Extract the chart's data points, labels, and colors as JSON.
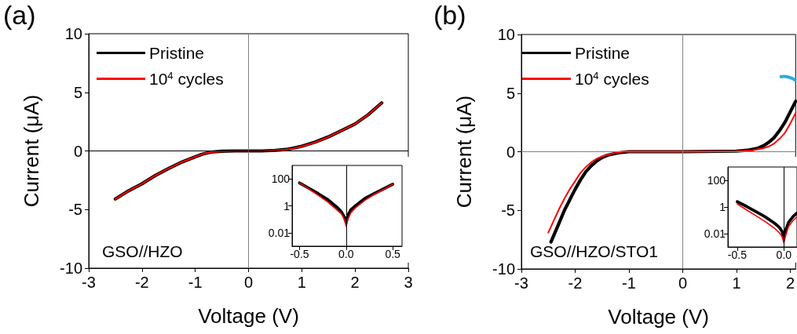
{
  "chart_data": [
    {
      "type": "line",
      "title": "(a)",
      "xlabel": "Voltage (V)",
      "ylabel": "Current (μA)",
      "xlim": [
        -3,
        3
      ],
      "xticks": [
        -3,
        -2,
        -1,
        0,
        1,
        2,
        3
      ],
      "ylim": [
        -10,
        10
      ],
      "yticks": [
        -10,
        -5,
        0,
        5,
        10
      ],
      "grid": false,
      "legend": "top left",
      "line_style": "solid",
      "marker": "none",
      "annotations": [
        "GSO//HZO"
      ],
      "ref_lines": [
        {
          "axis": "x",
          "value": 0,
          "color": "#808080"
        },
        {
          "axis": "y",
          "value": 0,
          "color": "#000000"
        }
      ],
      "series": [
        {
          "name": "Pristine",
          "color": "#000000",
          "x": [
            -2.5,
            -2.25,
            -2,
            -1.75,
            -1.5,
            -1.25,
            -1,
            -0.85,
            -0.7,
            -0.5,
            -0.25,
            0,
            0.25,
            0.5,
            0.7,
            0.85,
            1,
            1.25,
            1.5,
            1.75,
            2,
            2.25,
            2.5
          ],
          "values": [
            -4.1,
            -3.4,
            -2.8,
            -2.1,
            -1.5,
            -0.95,
            -0.5,
            -0.25,
            -0.1,
            -0.03,
            0,
            0,
            0,
            0.05,
            0.12,
            0.25,
            0.4,
            0.75,
            1.2,
            1.75,
            2.3,
            3.1,
            4.1
          ]
        },
        {
          "name": "10$^{4}$ cycles",
          "color": "#ff0000",
          "x": [
            -2.5,
            -2.25,
            -2,
            -1.75,
            -1.5,
            -1.25,
            -1,
            -0.85,
            -0.7,
            -0.5,
            -0.25,
            0,
            0.25,
            0.5,
            0.7,
            0.85,
            1,
            1.25,
            1.5,
            1.75,
            2,
            2.25,
            2.5
          ],
          "values": [
            -4.1,
            -3.4,
            -2.8,
            -2.1,
            -1.5,
            -0.95,
            -0.5,
            -0.25,
            -0.1,
            -0.03,
            0,
            0,
            0,
            0.05,
            0.1,
            0.22,
            0.38,
            0.72,
            1.2,
            1.75,
            2.3,
            3.1,
            4.1
          ]
        }
      ]
    },
    {
      "type": "line",
      "log": "y",
      "xlim": [
        -0.58,
        0.6
      ],
      "xticks": [
        {
          "value": -0.5,
          "label": "-0.5"
        },
        {
          "value": 0,
          "label": "0.0"
        },
        {
          "value": 0.5,
          "label": "0.5"
        }
      ],
      "ylim": [
        0.001,
        1000
      ],
      "yticks": [
        0.01,
        1,
        100
      ],
      "grid": false,
      "legend": false,
      "marker": "none",
      "ref_lines": [
        {
          "axis": "x",
          "value": 0,
          "color": "#000000"
        }
      ],
      "series": [
        {
          "color": "#000000",
          "x": [
            -0.5,
            -0.4,
            -0.3,
            -0.2,
            -0.1,
            -0.05,
            -0.02,
            0,
            0.02,
            0.05,
            0.1,
            0.2,
            0.3,
            0.4,
            0.5
          ],
          "values": [
            50,
            20,
            8,
            3,
            0.8,
            0.35,
            0.15,
            0.06,
            0.2,
            0.5,
            1,
            3.5,
            8,
            18,
            40
          ]
        },
        {
          "color": "#ff0000",
          "x": [
            -0.5,
            -0.4,
            -0.3,
            -0.2,
            -0.1,
            -0.05,
            -0.02,
            0,
            0.02,
            0.05,
            0.1,
            0.2,
            0.3,
            0.4,
            0.5
          ],
          "values": [
            50,
            18,
            6,
            2,
            0.5,
            0.25,
            0.1,
            0.03,
            0.1,
            0.3,
            0.7,
            2.5,
            7,
            16,
            40
          ]
        }
      ]
    },
    {
      "type": "line",
      "title": "(b)",
      "xlabel": "Voltage (V)",
      "ylabel": "Current (μA)",
      "xlim": [
        -3,
        2.1
      ],
      "xticks": [
        -3,
        -2,
        -1,
        0,
        1,
        2
      ],
      "ylim": [
        -10,
        10
      ],
      "yticks": [
        -10,
        -5,
        0,
        5,
        10
      ],
      "grid": false,
      "legend": "top left",
      "line_style": "solid",
      "marker": "none",
      "annotations": [
        "GSO//HZO/STO1"
      ],
      "ref_lines": [
        {
          "axis": "x",
          "value": 0,
          "color": "#808080"
        },
        {
          "axis": "y",
          "value": 0,
          "color": "#808080"
        }
      ],
      "series": [
        {
          "name": "Pristine",
          "color": "#000000",
          "x": [
            -2.45,
            -2.3,
            -2.2,
            -2.1,
            -2,
            -1.9,
            -1.8,
            -1.7,
            -1.6,
            -1.5,
            -1.4,
            -1.2,
            -1,
            0,
            1,
            1.2,
            1.4,
            1.5,
            1.6,
            1.7,
            1.8,
            1.9,
            2,
            2.1
          ],
          "values": [
            -7.7,
            -6.1,
            -5,
            -4.1,
            -3.2,
            -2.4,
            -1.7,
            -1.2,
            -0.8,
            -0.5,
            -0.3,
            -0.1,
            0,
            0,
            0.05,
            0.12,
            0.3,
            0.5,
            0.8,
            1.2,
            1.8,
            2.5,
            3.4,
            4.3
          ]
        },
        {
          "name": "10$^{4}$ cycles",
          "color": "#ff0000",
          "x": [
            -2.5,
            -2.4,
            -2.3,
            -2.2,
            -2.1,
            -2,
            -1.9,
            -1.8,
            -1.7,
            -1.6,
            -1.5,
            -1.3,
            -1.1,
            0,
            1,
            1.3,
            1.5,
            1.6,
            1.7,
            1.8,
            1.9,
            2,
            2.1
          ],
          "values": [
            -6.9,
            -5.9,
            -4.9,
            -4,
            -3.2,
            -2.5,
            -1.8,
            -1.3,
            -0.9,
            -0.6,
            -0.4,
            -0.15,
            0,
            0,
            0.03,
            0.12,
            0.3,
            0.45,
            0.7,
            1.1,
            1.6,
            2.4,
            3.3
          ]
        }
      ]
    },
    {
      "type": "line",
      "log": "y",
      "xlim": [
        -0.6,
        0.14
      ],
      "xticks": [
        {
          "value": -0.5,
          "label": "-0.5"
        },
        {
          "value": 0,
          "label": "0.0"
        }
      ],
      "ylim": [
        0.001,
        1000
      ],
      "yticks": [
        0.01,
        1,
        100
      ],
      "grid": false,
      "legend": false,
      "marker": "none",
      "ref_lines": [
        {
          "axis": "x",
          "value": 0,
          "color": "#000000"
        }
      ],
      "series": [
        {
          "color": "#000000",
          "x": [
            -0.5,
            -0.4,
            -0.3,
            -0.2,
            -0.1,
            -0.05,
            -0.02,
            0,
            0.02,
            0.05,
            0.1,
            0.14
          ],
          "values": [
            2.5,
            1.1,
            0.45,
            0.18,
            0.06,
            0.03,
            0.015,
            0.005,
            0.02,
            0.07,
            0.2,
            0.35
          ]
        },
        {
          "color": "#ff0000",
          "x": [
            -0.5,
            -0.4,
            -0.3,
            -0.2,
            -0.1,
            -0.05,
            -0.02,
            0,
            0.02,
            0.05,
            0.1,
            0.14
          ],
          "values": [
            1.7,
            0.6,
            0.22,
            0.08,
            0.025,
            0.012,
            0.006,
            0.002,
            0.008,
            0.035,
            0.1,
            0.18
          ]
        }
      ]
    }
  ]
}
